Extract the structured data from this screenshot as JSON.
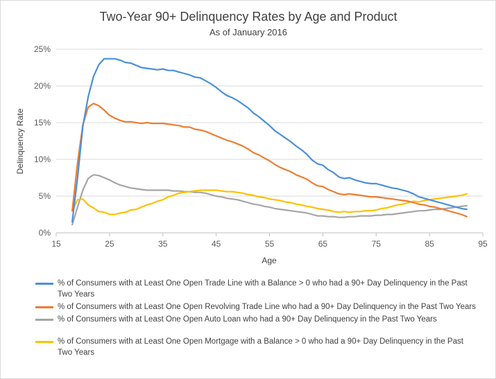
{
  "chart_data": {
    "type": "line",
    "title": "Two-Year 90+ Delinquency Rates by Age and Product",
    "subtitle": "As of January 2016",
    "xlabel": "Age",
    "ylabel": "Delinquency Rate",
    "xlim": [
      15,
      95
    ],
    "ylim": [
      0,
      25
    ],
    "x_ticks": [
      "15",
      "25",
      "35",
      "45",
      "55",
      "65",
      "75",
      "85",
      "95"
    ],
    "y_ticks": [
      "0%",
      "5%",
      "10%",
      "15%",
      "20%",
      "25%"
    ],
    "grid": "horizontal",
    "legend_position": "bottom",
    "series": [
      {
        "name": "% of Consumers with at Least One Open Trade Line with a Balance > 0 who had a 90+ Day Delinquency in the Past Two Years",
        "color": "#4a90d9",
        "x": [
          18,
          19,
          20,
          21,
          22,
          23,
          24,
          25,
          26,
          27,
          28,
          29,
          30,
          31,
          32,
          33,
          34,
          35,
          36,
          37,
          38,
          39,
          40,
          41,
          42,
          43,
          44,
          45,
          46,
          47,
          48,
          49,
          50,
          51,
          52,
          53,
          54,
          55,
          56,
          57,
          58,
          59,
          60,
          61,
          62,
          63,
          64,
          65,
          66,
          67,
          68,
          69,
          70,
          71,
          72,
          73,
          74,
          75,
          76,
          77,
          78,
          79,
          80,
          81,
          82,
          83,
          84,
          85,
          86,
          87,
          88,
          89,
          90,
          91,
          92
        ],
        "values": [
          1.5,
          7.5,
          14.5,
          18.5,
          21.3,
          22.9,
          23.7,
          23.7,
          23.7,
          23.5,
          23.2,
          23.1,
          22.8,
          22.5,
          22.4,
          22.3,
          22.2,
          22.3,
          22.1,
          22.1,
          21.9,
          21.7,
          21.5,
          21.2,
          21.1,
          20.7,
          20.3,
          19.8,
          19.2,
          18.7,
          18.4,
          18.0,
          17.5,
          17.0,
          16.3,
          15.8,
          15.2,
          14.6,
          13.9,
          13.4,
          12.9,
          12.4,
          11.8,
          11.3,
          10.7,
          9.9,
          9.4,
          9.2,
          8.6,
          8.2,
          7.6,
          7.4,
          7.5,
          7.2,
          7.0,
          6.8,
          6.7,
          6.7,
          6.5,
          6.3,
          6.1,
          6.0,
          5.8,
          5.6,
          5.3,
          4.9,
          4.7,
          4.5,
          4.3,
          4.1,
          3.9,
          3.7,
          3.5,
          3.3,
          3.2
        ]
      },
      {
        "name": "% of Consumers with at Least One Open Revolving Trade Line who had a 90+ Day Delinquency in the Past Two Years",
        "color": "#ed7d31",
        "x": [
          18,
          19,
          20,
          21,
          22,
          23,
          24,
          25,
          26,
          27,
          28,
          29,
          30,
          31,
          32,
          33,
          34,
          35,
          36,
          37,
          38,
          39,
          40,
          41,
          42,
          43,
          44,
          45,
          46,
          47,
          48,
          49,
          50,
          51,
          52,
          53,
          54,
          55,
          56,
          57,
          58,
          59,
          60,
          61,
          62,
          63,
          64,
          65,
          66,
          67,
          68,
          69,
          70,
          71,
          72,
          73,
          74,
          75,
          76,
          77,
          78,
          79,
          80,
          81,
          82,
          83,
          84,
          85,
          86,
          87,
          88,
          89,
          90,
          91,
          92
        ],
        "values": [
          3.0,
          9.5,
          14.7,
          17.1,
          17.6,
          17.3,
          16.7,
          16.0,
          15.6,
          15.3,
          15.1,
          15.1,
          15.0,
          14.9,
          15.0,
          14.9,
          14.9,
          14.9,
          14.8,
          14.7,
          14.6,
          14.4,
          14.4,
          14.1,
          14.0,
          13.8,
          13.5,
          13.2,
          12.9,
          12.6,
          12.4,
          12.1,
          11.8,
          11.4,
          10.9,
          10.6,
          10.2,
          9.8,
          9.3,
          8.9,
          8.6,
          8.3,
          7.9,
          7.6,
          7.3,
          6.8,
          6.4,
          6.3,
          5.9,
          5.6,
          5.3,
          5.2,
          5.3,
          5.2,
          5.1,
          5.0,
          4.9,
          4.9,
          4.8,
          4.7,
          4.6,
          4.5,
          4.4,
          4.3,
          4.1,
          3.9,
          3.8,
          3.6,
          3.5,
          3.3,
          3.1,
          2.9,
          2.7,
          2.5,
          2.2
        ]
      },
      {
        "name": "% of Consumers with at Least One Open Auto Loan who had a 90+ Day Delinquency in the Past Two Years",
        "color": "#a5a5a5",
        "x": [
          18,
          19,
          20,
          21,
          22,
          23,
          24,
          25,
          26,
          27,
          28,
          29,
          30,
          31,
          32,
          33,
          34,
          35,
          36,
          37,
          38,
          39,
          40,
          41,
          42,
          43,
          44,
          45,
          46,
          47,
          48,
          49,
          50,
          51,
          52,
          53,
          54,
          55,
          56,
          57,
          58,
          59,
          60,
          61,
          62,
          63,
          64,
          65,
          66,
          67,
          68,
          69,
          70,
          71,
          72,
          73,
          74,
          75,
          76,
          77,
          78,
          79,
          80,
          81,
          82,
          83,
          84,
          85,
          86,
          87,
          88,
          89,
          90,
          91,
          92
        ],
        "values": [
          1.1,
          3.5,
          5.8,
          7.4,
          7.9,
          7.8,
          7.5,
          7.2,
          6.8,
          6.5,
          6.3,
          6.1,
          6.0,
          5.9,
          5.8,
          5.8,
          5.8,
          5.8,
          5.8,
          5.7,
          5.7,
          5.6,
          5.6,
          5.5,
          5.5,
          5.4,
          5.2,
          5.0,
          4.9,
          4.7,
          4.6,
          4.5,
          4.3,
          4.1,
          3.9,
          3.8,
          3.6,
          3.5,
          3.3,
          3.2,
          3.1,
          3.0,
          2.9,
          2.8,
          2.7,
          2.5,
          2.3,
          2.3,
          2.2,
          2.2,
          2.1,
          2.1,
          2.2,
          2.2,
          2.3,
          2.3,
          2.3,
          2.4,
          2.4,
          2.5,
          2.5,
          2.6,
          2.7,
          2.8,
          2.9,
          3.0,
          3.0,
          3.1,
          3.2,
          3.2,
          3.3,
          3.4,
          3.5,
          3.6,
          3.7
        ]
      },
      {
        "name": "% of Consumers with at Least One Open Mortgage with a Balance > 0 who had a 90+ Day Delinquency in the Past Two Years",
        "color": "#ffc000",
        "x": [
          18,
          19,
          20,
          21,
          22,
          23,
          24,
          25,
          26,
          27,
          28,
          29,
          30,
          31,
          32,
          33,
          34,
          35,
          36,
          37,
          38,
          39,
          40,
          41,
          42,
          43,
          44,
          45,
          46,
          47,
          48,
          49,
          50,
          51,
          52,
          53,
          54,
          55,
          56,
          57,
          58,
          59,
          60,
          61,
          62,
          63,
          64,
          65,
          66,
          67,
          68,
          69,
          70,
          71,
          72,
          73,
          74,
          75,
          76,
          77,
          78,
          79,
          80,
          81,
          82,
          83,
          84,
          85,
          86,
          87,
          88,
          89,
          90,
          91,
          92
        ],
        "values": [
          3.0,
          4.5,
          4.6,
          3.8,
          3.4,
          2.9,
          2.8,
          2.5,
          2.5,
          2.7,
          2.8,
          3.1,
          3.2,
          3.5,
          3.8,
          4.0,
          4.3,
          4.5,
          4.9,
          5.1,
          5.4,
          5.5,
          5.6,
          5.7,
          5.8,
          5.8,
          5.8,
          5.8,
          5.7,
          5.6,
          5.6,
          5.5,
          5.4,
          5.2,
          5.1,
          4.9,
          4.8,
          4.6,
          4.5,
          4.4,
          4.2,
          4.1,
          3.9,
          3.8,
          3.6,
          3.5,
          3.3,
          3.2,
          3.1,
          2.9,
          2.8,
          2.9,
          2.8,
          2.9,
          2.9,
          3.0,
          3.0,
          3.1,
          3.3,
          3.4,
          3.6,
          3.8,
          3.9,
          4.1,
          4.3,
          4.2,
          4.4,
          4.5,
          4.6,
          4.7,
          4.8,
          4.9,
          5.0,
          5.1,
          5.3
        ]
      }
    ]
  },
  "legend_labels": [
    "% of Consumers with at Least One Open Trade Line with a Balance > 0 who had a 90+ Day Delinquency in the Past Two Years",
    "% of Consumers with at Least One Open Revolving Trade Line who had a 90+ Day Delinquency in the Past Two Years",
    "% of Consumers with at Least One Open Auto Loan who had a 90+ Day Delinquency in the Past Two Years",
    "% of Consumers with at Least One Open Mortgage with a Balance > 0 who had a 90+ Day Delinquency in the Past Two Years"
  ]
}
